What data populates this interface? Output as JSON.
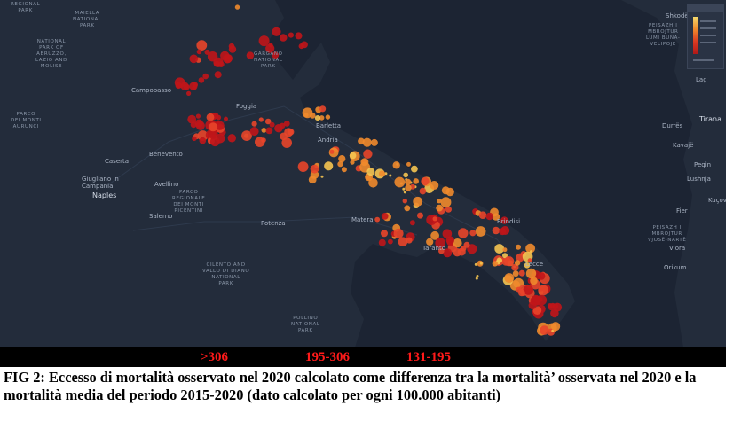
{
  "map": {
    "labels": {
      "regional_park_1": "REGIONAL\nPARK",
      "majella_park": "MAIELLA\nNATIONAL\nPARK",
      "abruzzo_park": "NATIONAL\nPARK OF\nABRUZZO,\nLAZIO AND\nMOLISE",
      "parco_monti_aurunci": "PARCO\nDEI MONTI\nAURUNCI",
      "gargano_park": "GARGANO\nNATIONAL\nPARK",
      "picentini_park": "PARCO\nREGIONALE\nDEI MONTI\nPICENTINI",
      "cilento_park": "CILENTO AND\nVALLO DI DIANO\nNATIONAL\nPARK",
      "pollino_park": "POLLINO\nNATIONAL\nPARK",
      "shkodra": "Shkodër",
      "peisazh_1": "PEISAZH I\nMBROJTUR\nLUMI BUNA-\nVELIPOJE",
      "peisazh_2": "PEISAZH I\nMBROJTUR\nVJOSË-NARTË",
      "campobasso": "Campobasso",
      "foggia": "Foggia",
      "barletta": "Barletta",
      "andria": "Andria",
      "benevento": "Benevento",
      "caserta": "Caserta",
      "giugliano": "Giugliano in\nCampania",
      "naples": "Naples",
      "avellino": "Avellino",
      "salerno": "Salerno",
      "potenza": "Potenza",
      "matera": "Matera",
      "brindisi": "Brindisi",
      "taranto": "Taranto",
      "lecce": "Lecce",
      "tirana": "Tirana",
      "durres": "Durrës",
      "kavaje": "Kavajë",
      "peqin": "Peqin",
      "lushnja": "Lushnja",
      "fier": "Fier",
      "vlora": "Vlora",
      "orikum": "Orikum",
      "lac": "Laç",
      "kuca": "Kuçova"
    }
  },
  "legend": {
    "categories": [
      ">306",
      "195-306",
      "131-195"
    ],
    "colors": {
      "high": "#c0151a",
      "mid": "#e8452a",
      "low": "#f08a2c",
      "lowest": "#f5c451"
    }
  },
  "caption": "FIG 2: Eccesso di mortalità osservato nel 2020 calcolato come differenza tra la mortalità’ osservata nel 2020 e la mortalità media del periodo 2015-2020 (dato calcolato per ogni 100.000 abitanti)"
}
